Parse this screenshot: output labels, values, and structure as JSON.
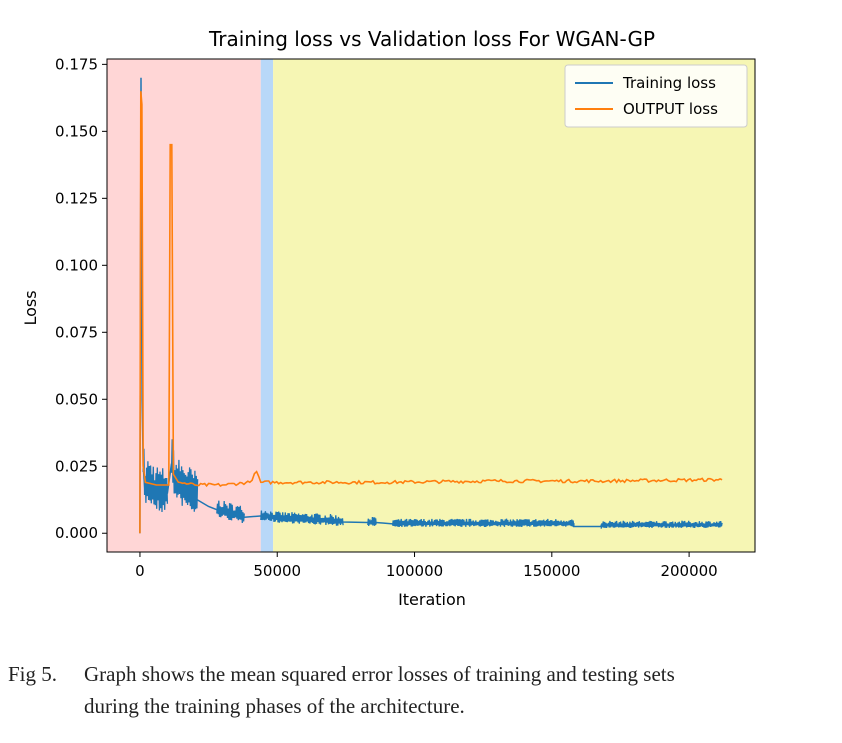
{
  "chart_data": {
    "type": "line",
    "title": "Training loss vs Validation loss For WGAN-GP",
    "xlabel": "Iteration",
    "ylabel": "Loss",
    "xlim": [
      -12000,
      224000
    ],
    "ylim": [
      -0.007,
      0.177
    ],
    "xticks": [
      0,
      50000,
      100000,
      150000,
      200000
    ],
    "yticks": [
      0.0,
      0.025,
      0.05,
      0.075,
      0.1,
      0.125,
      0.15,
      0.175
    ],
    "ytick_labels": [
      "0.000",
      "0.025",
      "0.050",
      "0.075",
      "0.100",
      "0.125",
      "0.150",
      "0.175"
    ],
    "grid": false,
    "legend_position": "top-right",
    "shaded_regions": [
      {
        "x_start": -12000,
        "x_end": 44000,
        "color": "#ffd6d6"
      },
      {
        "x_start": 44000,
        "x_end": 48500,
        "color": "#b8d8f8"
      },
      {
        "x_start": 48500,
        "x_end": 224000,
        "color": "#f6f6b4"
      }
    ],
    "series": [
      {
        "name": "Training loss",
        "color": "#1f77b4",
        "band_points": [
          [
            0,
            0.0
          ],
          [
            400,
            0.17
          ],
          [
            800,
            0.05
          ],
          [
            1200,
            0.025
          ],
          [
            1800,
            0.016
          ],
          [
            3000,
            0.018
          ],
          [
            5000,
            0.016
          ],
          [
            8000,
            0.014
          ],
          [
            10000,
            0.015
          ],
          [
            11500,
            0.026
          ],
          [
            13000,
            0.018
          ],
          [
            16000,
            0.016
          ],
          [
            20000,
            0.013
          ],
          [
            25000,
            0.01
          ],
          [
            30000,
            0.008
          ],
          [
            38000,
            0.006
          ],
          [
            45000,
            0.0065
          ],
          [
            50000,
            0.0055
          ],
          [
            60000,
            0.005
          ],
          [
            70000,
            0.0045
          ],
          [
            74000,
            0.0042
          ]
        ],
        "flat_segments": [
          {
            "x": [
              83000,
              86000
            ],
            "y": 0.004
          },
          {
            "x": [
              92000,
              158000
            ],
            "y": 0.0035
          },
          {
            "x": [
              158000,
              168000
            ],
            "y": 0.0025
          },
          {
            "x": [
              168000,
              212000
            ],
            "y": 0.003
          }
        ],
        "noise_bands": [
          {
            "x": [
              1200,
              10000
            ],
            "amp": 0.009
          },
          {
            "x": [
              11500,
              21000
            ],
            "amp": 0.009
          },
          {
            "x": [
              28000,
              38000
            ],
            "amp": 0.0035
          },
          {
            "x": [
              44000,
              74000
            ],
            "amp": 0.0022
          },
          {
            "x": [
              83000,
              86000
            ],
            "amp": 0.0018
          },
          {
            "x": [
              92000,
              158000
            ],
            "amp": 0.0016
          },
          {
            "x": [
              168000,
              212000
            ],
            "amp": 0.0014
          }
        ]
      },
      {
        "name": "OUTPUT loss",
        "color": "#ff7f0e",
        "points": [
          [
            0,
            0.0
          ],
          [
            300,
            0.165
          ],
          [
            700,
            0.16
          ],
          [
            1200,
            0.025
          ],
          [
            2000,
            0.019
          ],
          [
            6000,
            0.018
          ],
          [
            10500,
            0.018
          ],
          [
            11000,
            0.145
          ],
          [
            11600,
            0.145
          ],
          [
            12200,
            0.022
          ],
          [
            14000,
            0.019
          ],
          [
            20000,
            0.018
          ],
          [
            30000,
            0.018
          ],
          [
            40000,
            0.019
          ],
          [
            42500,
            0.023
          ],
          [
            44000,
            0.019
          ],
          [
            60000,
            0.019
          ],
          [
            90000,
            0.019
          ],
          [
            130000,
            0.0195
          ],
          [
            170000,
            0.0195
          ],
          [
            212000,
            0.02
          ]
        ]
      }
    ]
  },
  "caption": {
    "label": "Fig 5.",
    "line1": "Graph shows the mean squared error losses of training and testing sets",
    "line2": "during the training phases of the architecture."
  }
}
